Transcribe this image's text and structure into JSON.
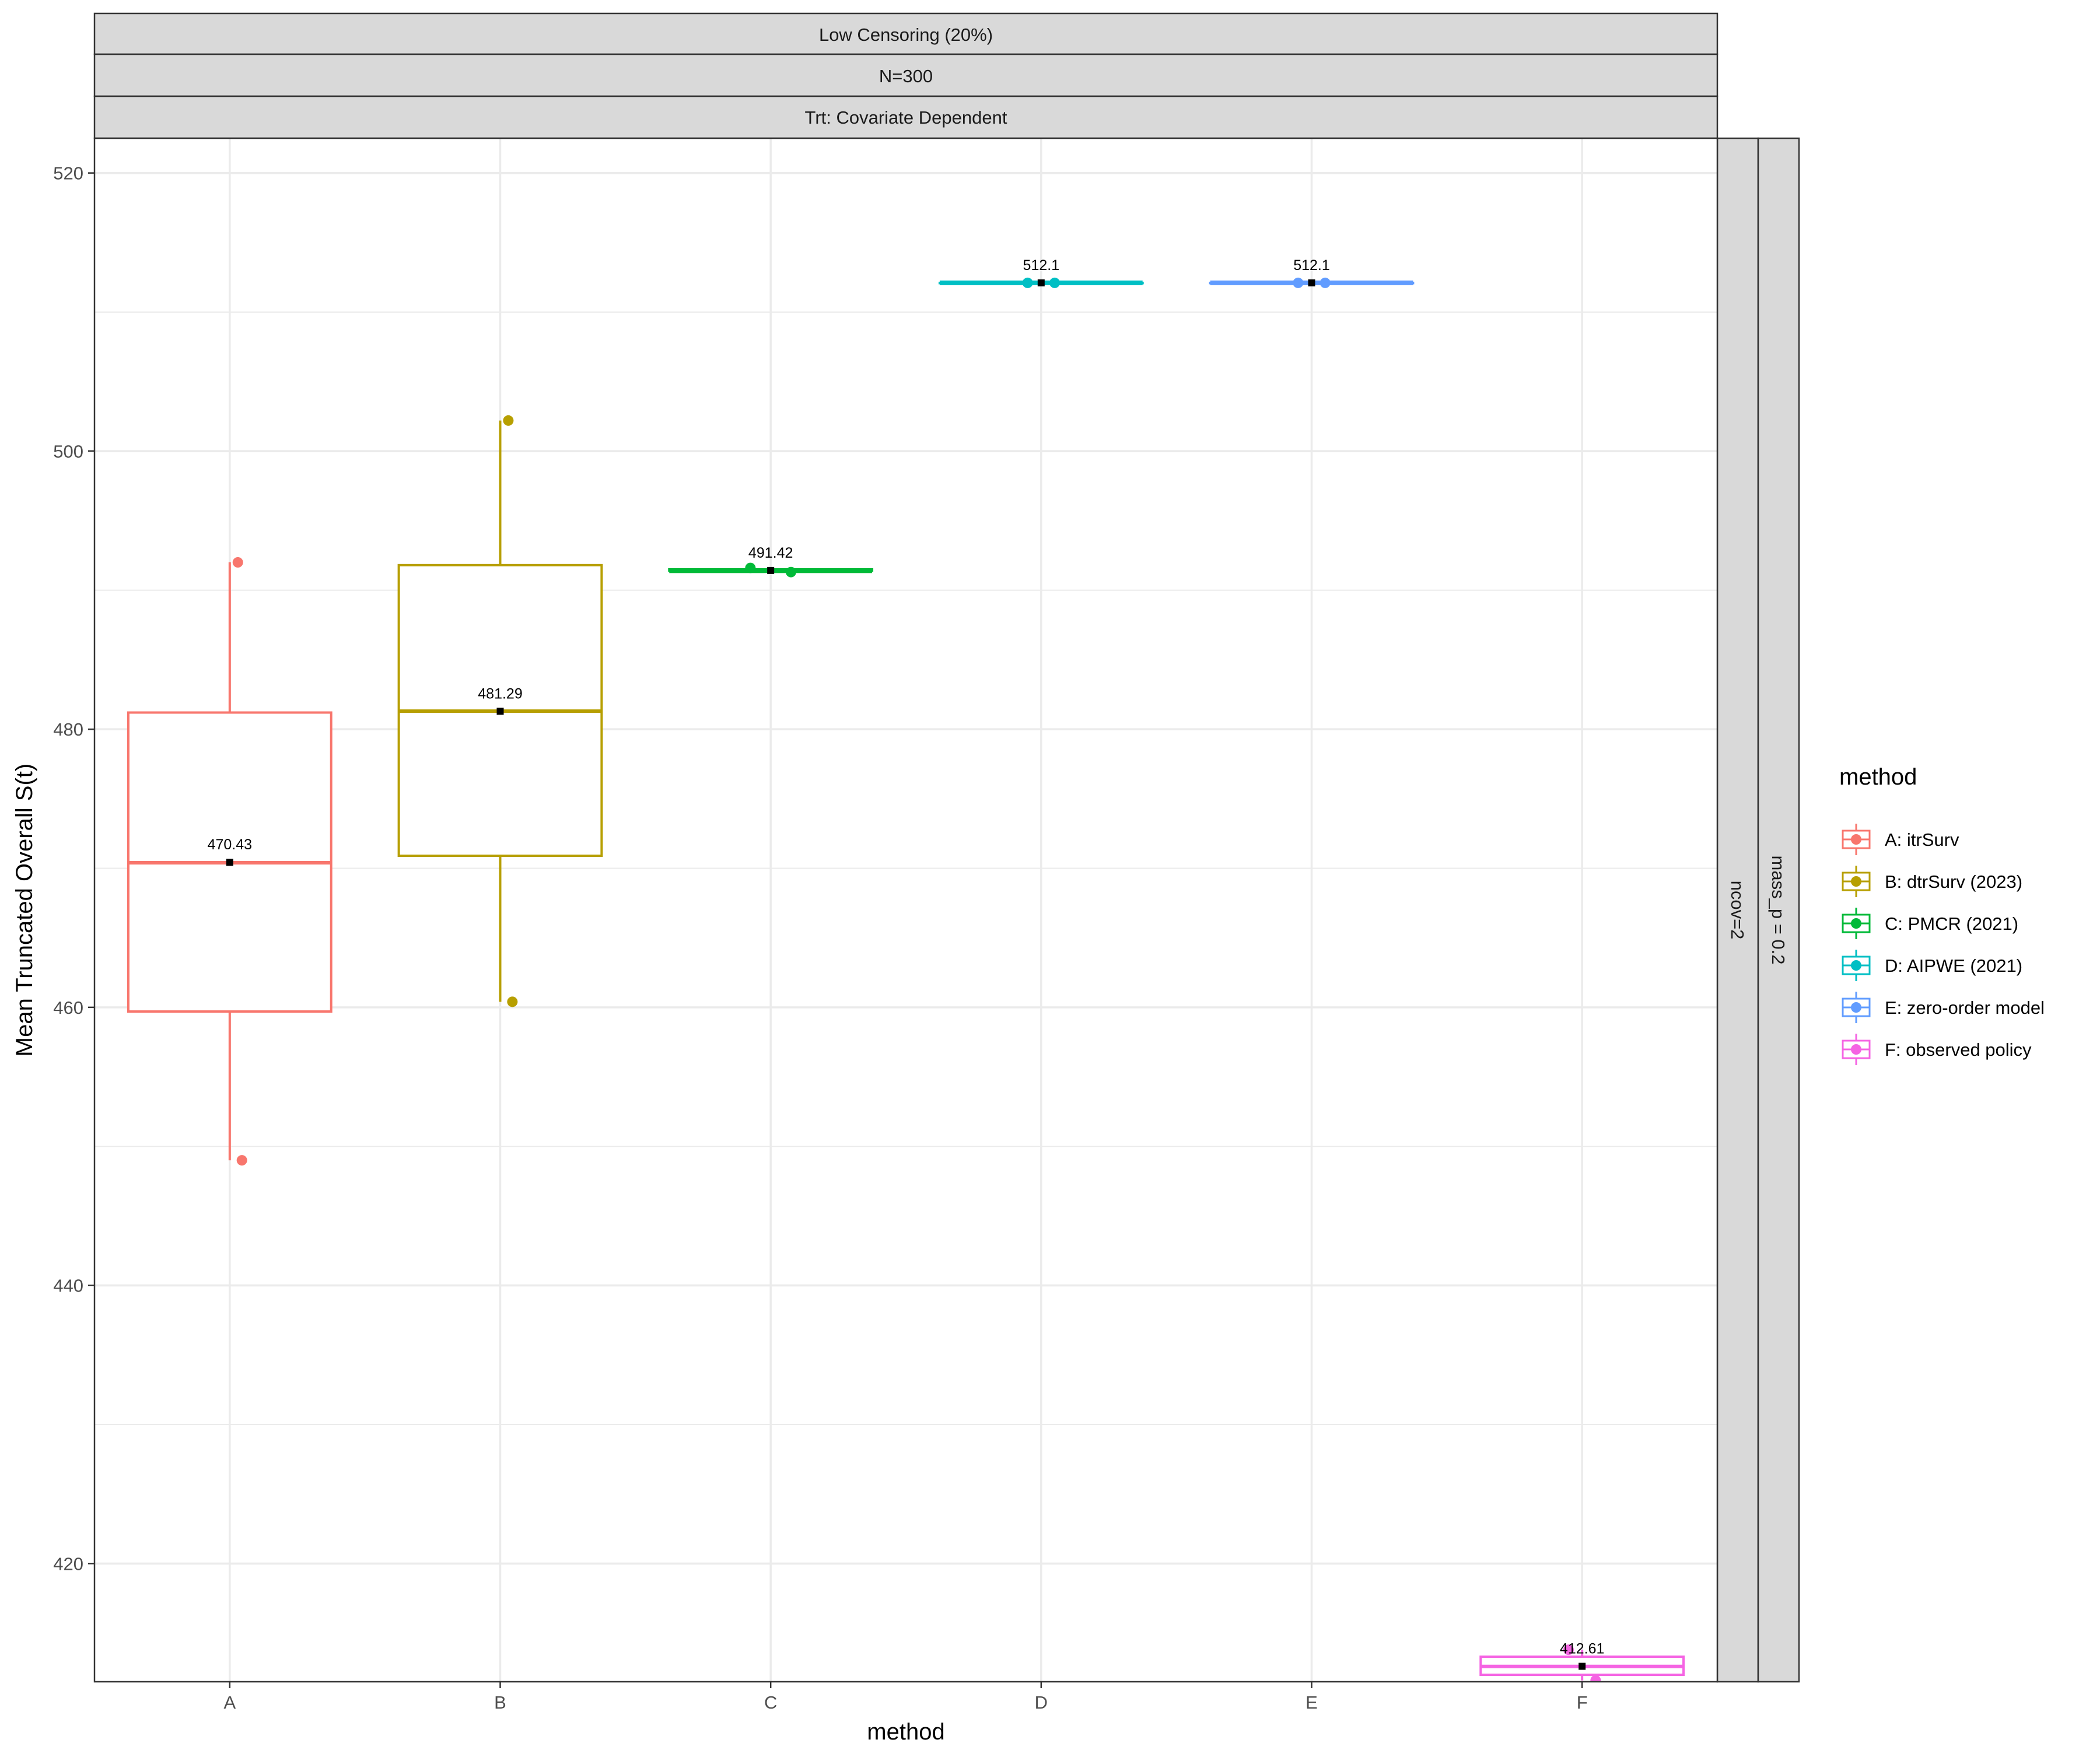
{
  "chart_data": {
    "type": "boxplot",
    "facet_strips": {
      "top": [
        "Low Censoring (20%)",
        "N=300",
        "Trt: Covariate Dependent"
      ],
      "right": [
        "ncov=2",
        "mass_p = 0.2"
      ]
    },
    "xlabel": "method",
    "ylabel": "Mean Truncated Overall S(t)",
    "categories": [
      "A",
      "B",
      "C",
      "D",
      "E",
      "F"
    ],
    "ylim": [
      411.5,
      522.5
    ],
    "yticks": [
      420,
      440,
      460,
      480,
      500,
      520
    ],
    "grid": true,
    "legend": {
      "title": "method",
      "position": "right",
      "entries": [
        "A: itrSurv",
        "B: dtrSurv (2023)",
        "C: PMCR (2021)",
        "D: AIPWE (2021)",
        "E: zero-order model",
        "F: observed policy"
      ]
    },
    "colors": [
      "#F8766D",
      "#B79F00",
      "#00BA38",
      "#00BFC4",
      "#619CFF",
      "#F564E3"
    ],
    "boxes": [
      {
        "category": "A",
        "min": 449.0,
        "q1": 459.7,
        "median": 470.4,
        "q3": 481.2,
        "max": 492.0,
        "mean": 470.43,
        "mean_label": "470.43",
        "points": [
          492.0,
          449.0
        ]
      },
      {
        "category": "B",
        "min": 460.4,
        "q1": 470.9,
        "median": 481.3,
        "q3": 491.8,
        "max": 502.2,
        "mean": 481.29,
        "mean_label": "481.29",
        "points": [
          502.2,
          460.4
        ]
      },
      {
        "category": "C",
        "min": 491.3,
        "q1": 491.4,
        "median": 491.4,
        "q3": 491.5,
        "max": 491.6,
        "mean": 491.42,
        "mean_label": "491.42",
        "points": [
          491.6,
          491.3
        ]
      },
      {
        "category": "D",
        "min": 512.1,
        "q1": 512.1,
        "median": 512.1,
        "q3": 512.1,
        "max": 512.1,
        "mean": 512.1,
        "mean_label": "512.1",
        "points": [
          512.1,
          512.1
        ]
      },
      {
        "category": "E",
        "min": 512.1,
        "q1": 512.1,
        "median": 512.1,
        "q3": 512.1,
        "max": 512.1,
        "mean": 512.1,
        "mean_label": "512.1",
        "points": [
          512.1,
          512.1
        ]
      },
      {
        "category": "F",
        "min": 411.6,
        "q1": 412.0,
        "median": 412.6,
        "q3": 413.3,
        "max": 413.8,
        "mean": 412.61,
        "mean_label": "412.61",
        "points": [
          413.8,
          411.6
        ]
      }
    ]
  }
}
